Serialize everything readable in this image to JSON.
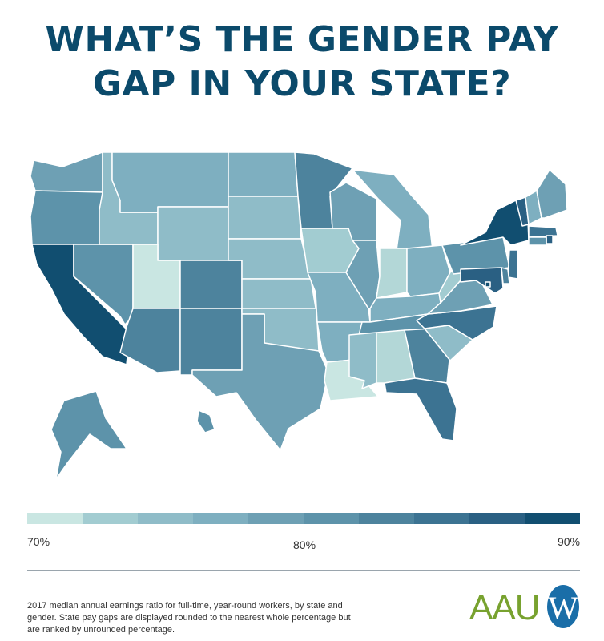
{
  "title": {
    "line1": "WHAT’S THE GENDER PAY",
    "line2": "GAP IN YOUR STATE?"
  },
  "scale": {
    "min_label": "70%",
    "mid_label": "80%",
    "max_label": "90%",
    "colors": [
      "#c9e6e2",
      "#b3d7d7",
      "#a2ccd1",
      "#8fbcc8",
      "#7eafc0",
      "#6ea0b4",
      "#5d93aa",
      "#4d839d",
      "#3c7392",
      "#2a6083",
      "#114e70"
    ]
  },
  "footnote": "2017 median annual earnings ratio for full-time, year-round workers, by state and gender. State pay gaps are displayed rounded to the nearest whole percentage but are ranked by unrounded percentage.",
  "logo": {
    "letters": "AAU",
    "mark": "W"
  },
  "states": {
    "WA": 5,
    "OR": 6,
    "CA": 10,
    "NV": 6,
    "ID": 3,
    "MT": 4,
    "WY": 3,
    "UT": 0,
    "AZ": 7,
    "CO": 7,
    "NM": 7,
    "ND": 4,
    "SD": 3,
    "NE": 3,
    "KS": 3,
    "OK": 3,
    "TX": 5,
    "MN": 7,
    "IA": 2,
    "MO": 4,
    "AR": 4,
    "LA": 0,
    "WI": 5,
    "IL": 5,
    "MI": 4,
    "IN": 1,
    "OH": 4,
    "KY": 4,
    "TN": 6,
    "MS": 3,
    "AL": 1,
    "GA": 7,
    "FL": 8,
    "SC": 3,
    "NC": 8,
    "VA": 5,
    "WV": 2,
    "PA": 6,
    "NY": 10,
    "VT": 9,
    "NH": 4,
    "ME": 5,
    "MA": 8,
    "RI": 9,
    "CT": 6,
    "NJ": 8,
    "DE": 7,
    "MD": 9,
    "DC": 10,
    "AK": 6,
    "HI": 6
  }
}
